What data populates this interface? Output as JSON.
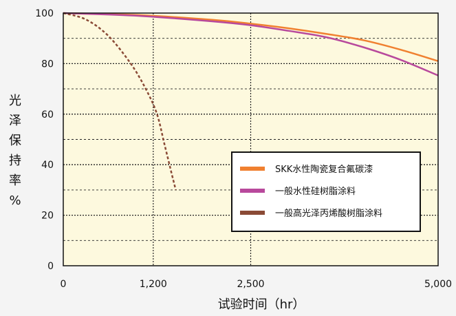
{
  "chart_data": {
    "type": "line",
    "xlabel": "试验时间（hr）",
    "ylabel": "光泽保持率%",
    "xlim": [
      0,
      5000
    ],
    "ylim": [
      0,
      100
    ],
    "x_ticks": [
      0,
      1200,
      2500,
      5000
    ],
    "x_tick_labels": [
      "0",
      "1,200",
      "2,500",
      "5,000"
    ],
    "y_ticks": [
      0,
      20,
      40,
      60,
      80,
      100
    ],
    "y_tick_labels": [
      "0",
      "20",
      "40",
      "60",
      "80",
      "100"
    ],
    "grid": true,
    "legend_position": "bottom-right",
    "series": [
      {
        "name": "SKK水性陶瓷复合氟碳漆",
        "color": "#f08030",
        "style": "solid",
        "points": [
          [
            0,
            100
          ],
          [
            1000,
            99.2
          ],
          [
            2000,
            97.3
          ],
          [
            2500,
            95.8
          ],
          [
            3000,
            94
          ],
          [
            3500,
            91.8
          ],
          [
            4000,
            89.3
          ],
          [
            4500,
            85.5
          ],
          [
            5000,
            81
          ]
        ]
      },
      {
        "name": "一般水性硅树脂涂料",
        "color": "#b8499c",
        "style": "solid",
        "points": [
          [
            0,
            100
          ],
          [
            1000,
            98.9
          ],
          [
            2000,
            96.7
          ],
          [
            2500,
            95.2
          ],
          [
            3000,
            93
          ],
          [
            3500,
            90.5
          ],
          [
            4000,
            86.5
          ],
          [
            4500,
            81.5
          ],
          [
            5000,
            75.3
          ]
        ]
      },
      {
        "name": "一般高光泽丙烯酸树脂涂料",
        "color": "#8a4a36",
        "style": "dashed",
        "points": [
          [
            0,
            100
          ],
          [
            300,
            97.5
          ],
          [
            600,
            91
          ],
          [
            900,
            80
          ],
          [
            1100,
            70
          ],
          [
            1250,
            60
          ],
          [
            1350,
            48
          ],
          [
            1450,
            36
          ],
          [
            1500,
            30
          ]
        ]
      }
    ]
  }
}
